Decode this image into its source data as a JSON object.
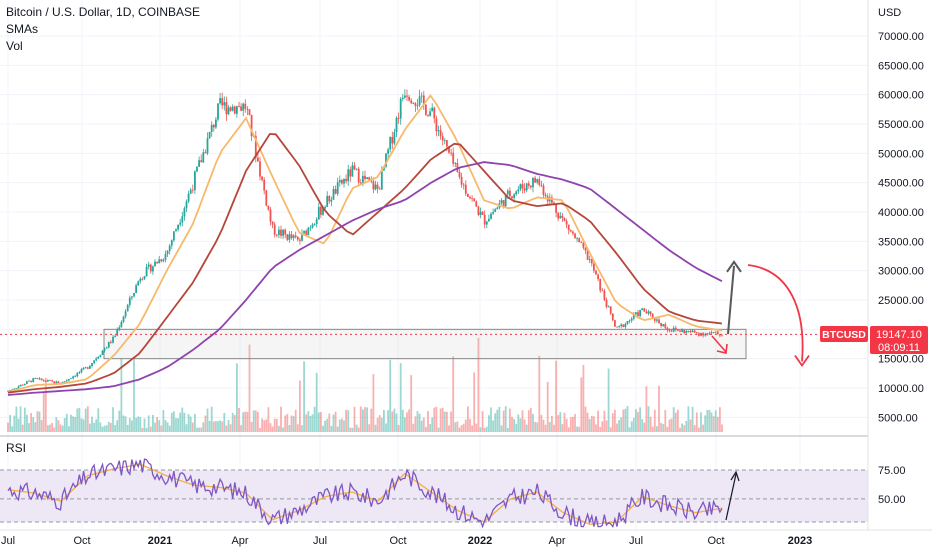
{
  "header": {
    "title": "Bitcoin / U.S. Dollar, 1D, COINBASE",
    "indicator_1": "SMAs",
    "indicator_2": "Vol"
  },
  "price_axis": {
    "currency": "USD",
    "labels": [
      "70000.00",
      "65000.00",
      "60000.00",
      "55000.00",
      "50000.00",
      "45000.00",
      "40000.00",
      "35000.00",
      "30000.00",
      "25000.00",
      "20000.00",
      "15000.00",
      "10000.00",
      "5000.00"
    ],
    "values": [
      70000,
      65000,
      60000,
      55000,
      50000,
      45000,
      40000,
      35000,
      30000,
      25000,
      20000,
      15000,
      10000,
      5000
    ]
  },
  "time_axis": {
    "labels": [
      {
        "text": "Jul",
        "bold": false
      },
      {
        "text": "Oct",
        "bold": false
      },
      {
        "text": "2021",
        "bold": true
      },
      {
        "text": "Apr",
        "bold": false
      },
      {
        "text": "Jul",
        "bold": false
      },
      {
        "text": "Oct",
        "bold": false
      },
      {
        "text": "2022",
        "bold": true
      },
      {
        "text": "Apr",
        "bold": false
      },
      {
        "text": "Jul",
        "bold": false
      },
      {
        "text": "Oct",
        "bold": false
      },
      {
        "text": "2023",
        "bold": true
      }
    ]
  },
  "price_badge": {
    "symbol": "BTCUSD",
    "price": "19147.10",
    "countdown": "08:09:11",
    "color": "#f23645"
  },
  "rsi": {
    "label": "RSI",
    "levels": [
      "75.00",
      "50.00"
    ],
    "level_values": [
      75,
      50
    ]
  },
  "colors": {
    "up": "#26a69a",
    "down": "#ef5350",
    "sma_fast": "#f7b96b",
    "sma_mid": "#b5473a",
    "sma_slow": "#8e44ad",
    "rsi_line": "#7e57c2",
    "rsi_ma": "#f5b041",
    "rsi_band": "#ede7f6",
    "arrow_up": "#595959",
    "arrow_down": "#f23645",
    "box_border": "#888888",
    "price_line": "#f23645"
  },
  "chart_data": {
    "type": "line",
    "title": "Bitcoin / U.S. Dollar, 1D, COINBASE",
    "ylabel": "USD",
    "ylim": [
      0,
      72000
    ],
    "x": [
      "2020-07",
      "2020-08",
      "2020-09",
      "2020-10",
      "2020-11",
      "2020-12",
      "2021-01",
      "2021-02",
      "2021-03",
      "2021-04",
      "2021-05",
      "2021-06",
      "2021-07",
      "2021-08",
      "2021-09",
      "2021-10",
      "2021-11",
      "2021-12",
      "2022-01",
      "2022-02",
      "2022-03",
      "2022-04",
      "2022-05",
      "2022-06",
      "2022-07",
      "2022-08",
      "2022-09",
      "2022-10"
    ],
    "series": [
      {
        "values": [
          9500,
          11500,
          10800,
          13500,
          18500,
          29000,
          33000,
          45000,
          58000,
          58000,
          37000,
          35000,
          41500,
          47000,
          43800,
          61000,
          57000,
          46300,
          38500,
          43200,
          45500,
          38500,
          31800,
          19900,
          23300,
          20000,
          19400,
          19147
        ]
      },
      {
        "values": [
          9300,
          10500,
          10700,
          11500,
          15500,
          21000,
          30000,
          38000,
          50000,
          56000,
          46000,
          36500,
          34500,
          44000,
          46000,
          54000,
          60000,
          52000,
          42000,
          40500,
          42500,
          42000,
          33000,
          24500,
          21500,
          22500,
          20500,
          19800
        ]
      },
      {
        "values": [
          9200,
          9800,
          10200,
          10800,
          12500,
          16000,
          22000,
          28000,
          36000,
          47000,
          54000,
          48000,
          40000,
          36000,
          40000,
          44000,
          49000,
          52000,
          47000,
          42000,
          41000,
          41500,
          38500,
          33000,
          27000,
          23000,
          21500,
          21000
        ]
      },
      {
        "values": [
          8800,
          9200,
          9500,
          9800,
          10300,
          11500,
          13500,
          16500,
          20000,
          25000,
          30500,
          33500,
          36000,
          38500,
          40500,
          42000,
          45000,
          47500,
          48500,
          48000,
          46500,
          45500,
          44000,
          40500,
          37000,
          33500,
          30500,
          28200
        ]
      }
    ],
    "volume_ylim": [
      0,
      10000
    ],
    "rsi_ylim": [
      30,
      80
    ],
    "rsi": [
      58,
      55,
      48,
      70,
      76,
      80,
      70,
      62,
      60,
      55,
      32,
      40,
      52,
      56,
      48,
      72,
      56,
      40,
      30,
      50,
      56,
      38,
      28,
      30,
      52,
      44,
      38,
      42
    ],
    "support_zone": [
      15000,
      20000
    ],
    "current_price": 19147.1,
    "projection": {
      "up_target": 31500,
      "down_target": 13500
    }
  }
}
